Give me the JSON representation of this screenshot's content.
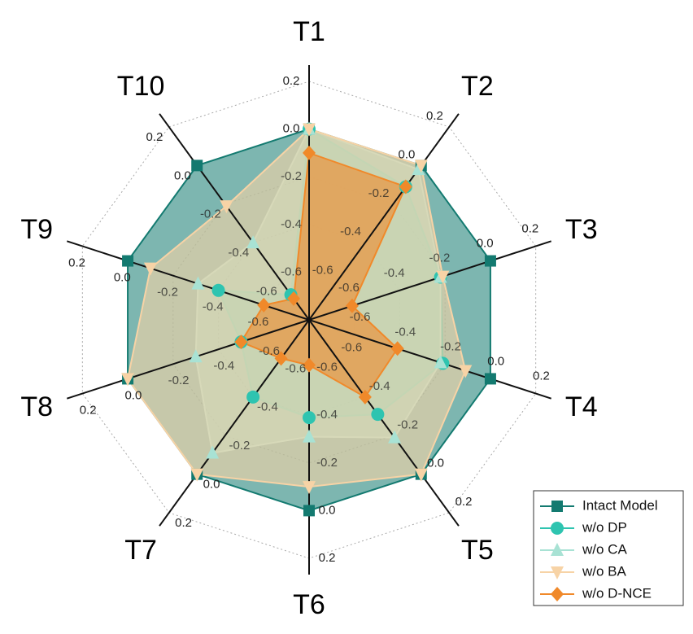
{
  "chart_data": {
    "type": "radar",
    "categories": [
      "T1",
      "T2",
      "T3",
      "T4",
      "T5",
      "T6",
      "T7",
      "T8",
      "T9",
      "T10"
    ],
    "ylim": [
      -0.8,
      0.2
    ],
    "yticks": [
      -0.6,
      -0.4,
      -0.2,
      {
        "value": 0,
        "label": "0.0"
      },
      0.2
    ],
    "grid": true,
    "legend": "lower right",
    "series": [
      {
        "name": "Intact Model",
        "color": "#137a70",
        "marker": "square",
        "values": [
          0,
          0,
          0,
          0,
          0,
          0,
          0,
          0,
          0,
          0
        ]
      },
      {
        "name": "w/o DP",
        "color": "#2ec4b0",
        "marker": "circle",
        "values": [
          0,
          -0.11,
          -0.22,
          -0.21,
          -0.31,
          -0.39,
          -0.4,
          -0.5,
          -0.4,
          -0.67
        ]
      },
      {
        "name": "w/o CA",
        "color": "#a8e2d4",
        "marker": "triangle-up",
        "values": [
          0,
          -0.02,
          -0.22,
          -0.22,
          -0.19,
          -0.31,
          -0.11,
          -0.3,
          -0.31,
          -0.4
        ]
      },
      {
        "name": "w/o BA",
        "color": "#f7d3a6",
        "marker": "triangle-down",
        "values": [
          0,
          0,
          -0.21,
          -0.11,
          0,
          -0.1,
          0,
          0,
          -0.1,
          -0.21
        ]
      },
      {
        "name": "w/o D-NCE",
        "color": "#f0892a",
        "marker": "diamond",
        "values": [
          -0.1,
          -0.11,
          -0.61,
          -0.41,
          -0.4,
          -0.61,
          -0.6,
          -0.5,
          -0.6,
          -0.69
        ]
      }
    ]
  }
}
